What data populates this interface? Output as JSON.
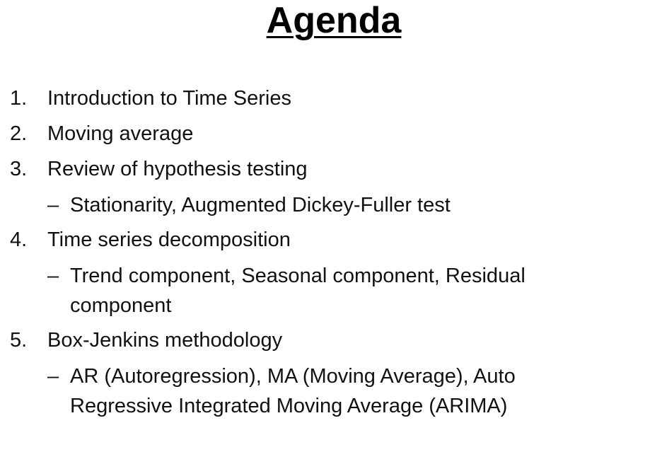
{
  "slide": {
    "title": "Agenda",
    "items": [
      {
        "num": "1.",
        "text": "Introduction to Time Series"
      },
      {
        "num": "2.",
        "text": "Moving average"
      },
      {
        "num": "3.",
        "text": "Review of hypothesis testing",
        "sub": "Stationarity, Augmented Dickey-Fuller test"
      },
      {
        "num": "4.",
        "text": "Time series decomposition",
        "sub": "Trend component, Seasonal component, Residual component"
      },
      {
        "num": "5.",
        "text": "Box-Jenkins methodology",
        "sub": "AR (Autoregression), MA (Moving Average), Auto Regressive Integrated Moving Average (ARIMA)"
      }
    ],
    "sub_marker": "–"
  }
}
